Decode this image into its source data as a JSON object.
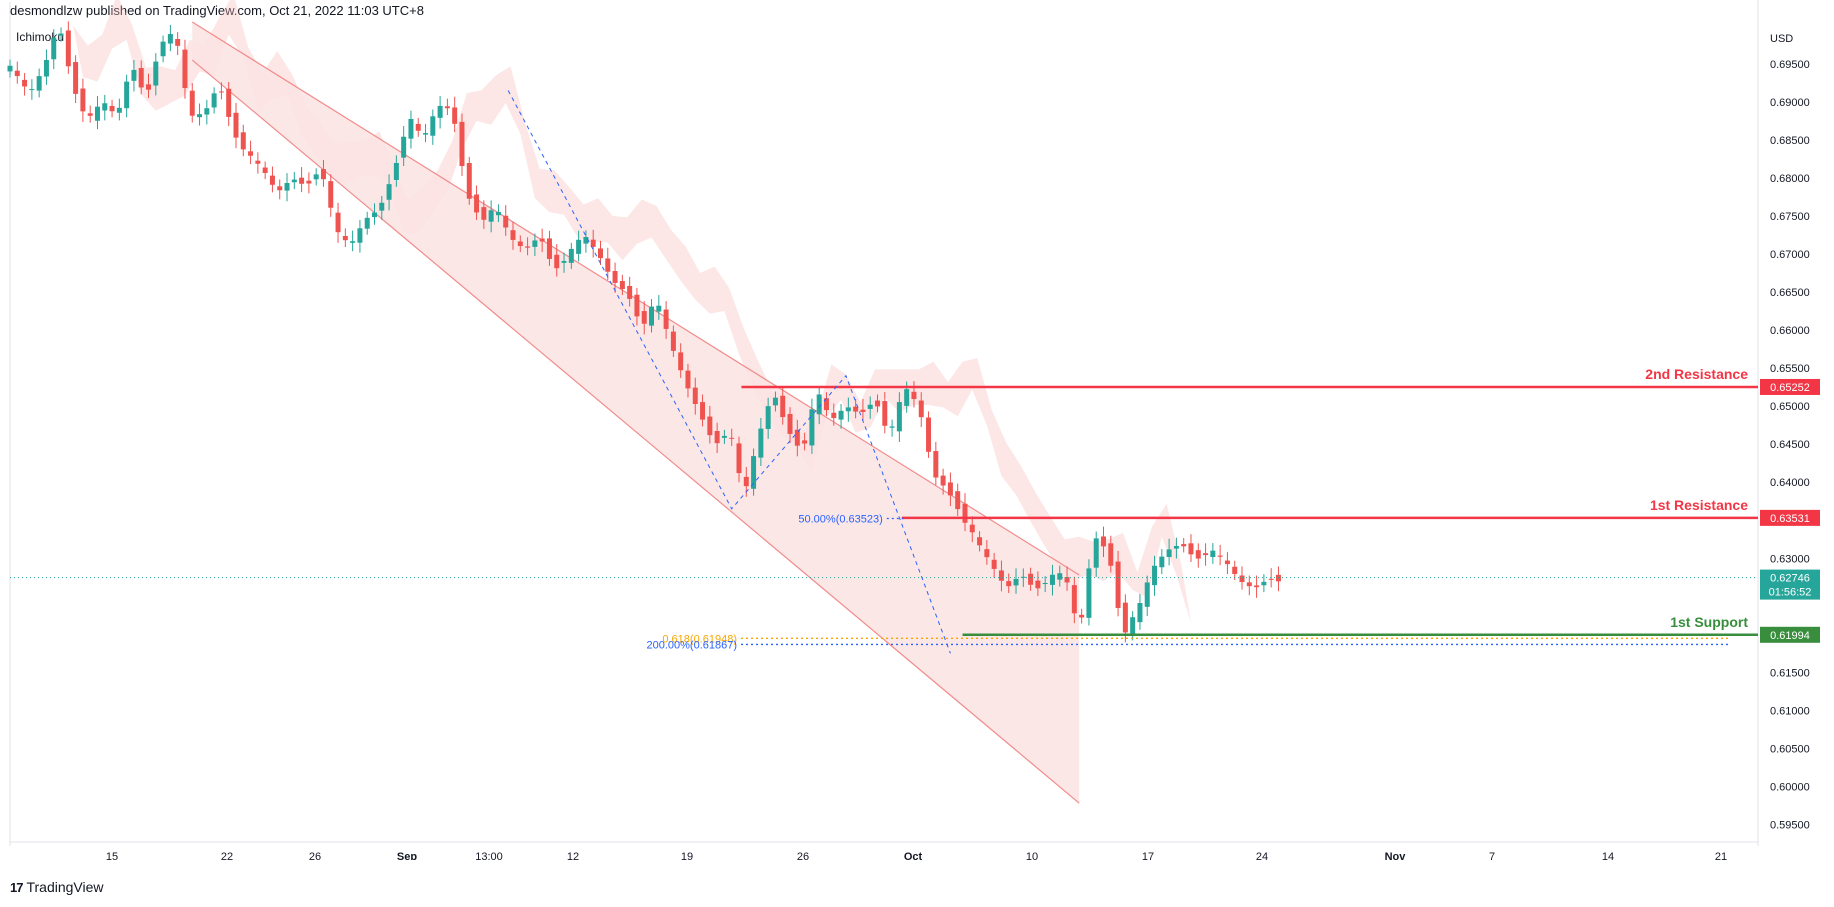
{
  "header": {
    "publisher": "desmondlzw published on TradingView.com, Oct 21, 2022 11:03 UTC+8"
  },
  "study": {
    "label": "Ichimoku"
  },
  "footer": {
    "logo_text": "TradingView"
  },
  "colors": {
    "up": "#26a69a",
    "down": "#ef5350",
    "channel": "#f28b8b",
    "resistance": "#f23645",
    "support": "#388e3c",
    "fib_blue": "#2962ff",
    "fib_orange": "#f7a600"
  },
  "chart_data": {
    "type": "candlestick",
    "symbol_currency": "USD",
    "y_ticks": [
      "0.69500",
      "0.69000",
      "0.68500",
      "0.68000",
      "0.67500",
      "0.67000",
      "0.66500",
      "0.66000",
      "0.65500",
      "0.65000",
      "0.64500",
      "0.64000",
      "0.63000",
      "0.61500",
      "0.61000",
      "0.60500",
      "0.60000",
      "0.59500"
    ],
    "x_ticks": [
      "15",
      "22",
      "26",
      "Sep",
      "13:00",
      "12",
      "19",
      "26",
      "Oct",
      "10",
      "17",
      "24",
      "Nov",
      "7",
      "14",
      "21"
    ],
    "y_range": [
      0.5927,
      0.7005
    ],
    "close_path": [
      [
        0,
        0.6945
      ],
      [
        8,
        0.691
      ],
      [
        14,
        0.6945
      ],
      [
        20,
        0.7005
      ],
      [
        26,
        0.692
      ],
      [
        32,
        0.6875
      ],
      [
        38,
        0.69
      ],
      [
        44,
        0.688
      ],
      [
        50,
        0.695
      ],
      [
        56,
        0.6905
      ],
      [
        62,
        0.698
      ],
      [
        68,
        0.699
      ],
      [
        74,
        0.688
      ],
      [
        80,
        0.6885
      ],
      [
        86,
        0.6925
      ],
      [
        92,
        0.686
      ],
      [
        98,
        0.683
      ],
      [
        104,
        0.681
      ],
      [
        110,
        0.678
      ],
      [
        116,
        0.68
      ],
      [
        122,
        0.679
      ],
      [
        128,
        0.6815
      ],
      [
        134,
        0.673
      ],
      [
        140,
        0.671
      ],
      [
        146,
        0.6745
      ],
      [
        152,
        0.676
      ],
      [
        158,
        0.681
      ],
      [
        164,
        0.688
      ],
      [
        170,
        0.685
      ],
      [
        176,
        0.6895
      ],
      [
        182,
        0.689
      ],
      [
        188,
        0.678
      ],
      [
        194,
        0.6745
      ],
      [
        200,
        0.676
      ],
      [
        206,
        0.672
      ],
      [
        212,
        0.6705
      ],
      [
        218,
        0.6725
      ],
      [
        224,
        0.668
      ],
      [
        230,
        0.67
      ],
      [
        236,
        0.6725
      ],
      [
        242,
        0.67
      ],
      [
        248,
        0.6665
      ],
      [
        254,
        0.665
      ],
      [
        260,
        0.6605
      ],
      [
        266,
        0.664
      ],
      [
        272,
        0.658
      ],
      [
        278,
        0.653
      ],
      [
        284,
        0.649
      ],
      [
        290,
        0.645
      ],
      [
        296,
        0.647
      ],
      [
        302,
        0.638
      ],
      [
        308,
        0.646
      ],
      [
        314,
        0.652
      ],
      [
        320,
        0.647
      ],
      [
        326,
        0.644
      ],
      [
        332,
        0.652
      ],
      [
        338,
        0.648
      ],
      [
        344,
        0.65
      ],
      [
        350,
        0.649
      ],
      [
        356,
        0.651
      ],
      [
        362,
        0.646
      ],
      [
        368,
        0.6525
      ],
      [
        374,
        0.65
      ],
      [
        380,
        0.641
      ],
      [
        386,
        0.639
      ],
      [
        392,
        0.6355
      ],
      [
        398,
        0.632
      ],
      [
        404,
        0.629
      ],
      [
        410,
        0.626
      ],
      [
        416,
        0.628
      ],
      [
        422,
        0.626
      ],
      [
        428,
        0.6275
      ],
      [
        434,
        0.628
      ],
      [
        440,
        0.62
      ],
      [
        446,
        0.633
      ],
      [
        452,
        0.631
      ],
      [
        458,
        0.62
      ],
      [
        464,
        0.623
      ],
      [
        470,
        0.6285
      ],
      [
        476,
        0.631
      ],
      [
        482,
        0.632
      ],
      [
        488,
        0.63
      ],
      [
        494,
        0.631
      ],
      [
        500,
        0.6295
      ],
      [
        506,
        0.627
      ],
      [
        512,
        0.626
      ],
      [
        518,
        0.6275
      ],
      [
        524,
        0.627
      ]
    ],
    "channel": {
      "upper_start": [
        0.7005,
        0
      ],
      "upper_end": [
        0.6285,
        524
      ],
      "lower_start": [
        0.6955,
        0
      ],
      "lower_end": [
        0.5975,
        524
      ]
    },
    "levels": [
      {
        "name": "2nd Resistance",
        "value": 0.65252,
        "label": "0.65252"
      },
      {
        "name": "1st Resistance",
        "value": 0.63531,
        "label": "0.63531"
      },
      {
        "name": "1st Support",
        "value": 0.61994,
        "label": "0.61994"
      }
    ],
    "current_price": {
      "value": 0.62746,
      "label": "0.62746",
      "countdown": "01:56:52"
    },
    "fib_labels": [
      {
        "text": "50.00%(0.63523)",
        "value": 0.63523
      },
      {
        "text": "0.618(0.61948)",
        "value": 0.61948
      },
      {
        "text": "200.00%(0.61867)",
        "value": 0.61867
      }
    ]
  }
}
